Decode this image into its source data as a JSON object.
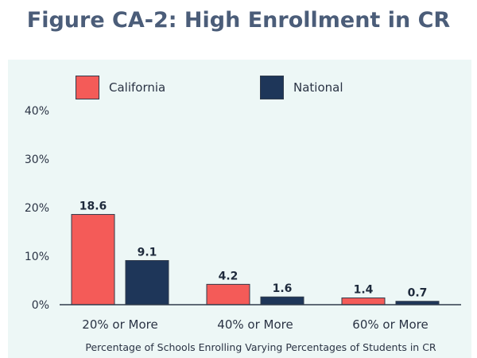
{
  "title": "Figure CA-2: High Enrollment in CR",
  "colors": {
    "california": "#f45b58",
    "national": "#1e3659",
    "title": "#4b5d79",
    "panel": "#edf7f6"
  },
  "chart_data": {
    "type": "bar",
    "categories": [
      "20% or More",
      "40% or More",
      "60% or More"
    ],
    "series": [
      {
        "name": "California",
        "values": [
          18.6,
          4.2,
          1.4
        ]
      },
      {
        "name": "National",
        "values": [
          9.1,
          1.6,
          0.7
        ]
      }
    ],
    "data_labels": [
      [
        "18.6",
        "4.2",
        "1.4"
      ],
      [
        "9.1",
        "1.6",
        "0.7"
      ]
    ],
    "ylim": [
      0,
      40
    ],
    "yticks": [
      "0%",
      "10%",
      "20%",
      "30%",
      "40%"
    ],
    "xlabel": "Percentage of Schools Enrolling Varying Percentages of Students in CR",
    "ylabel": "",
    "legend_position": "top",
    "grid": false
  }
}
